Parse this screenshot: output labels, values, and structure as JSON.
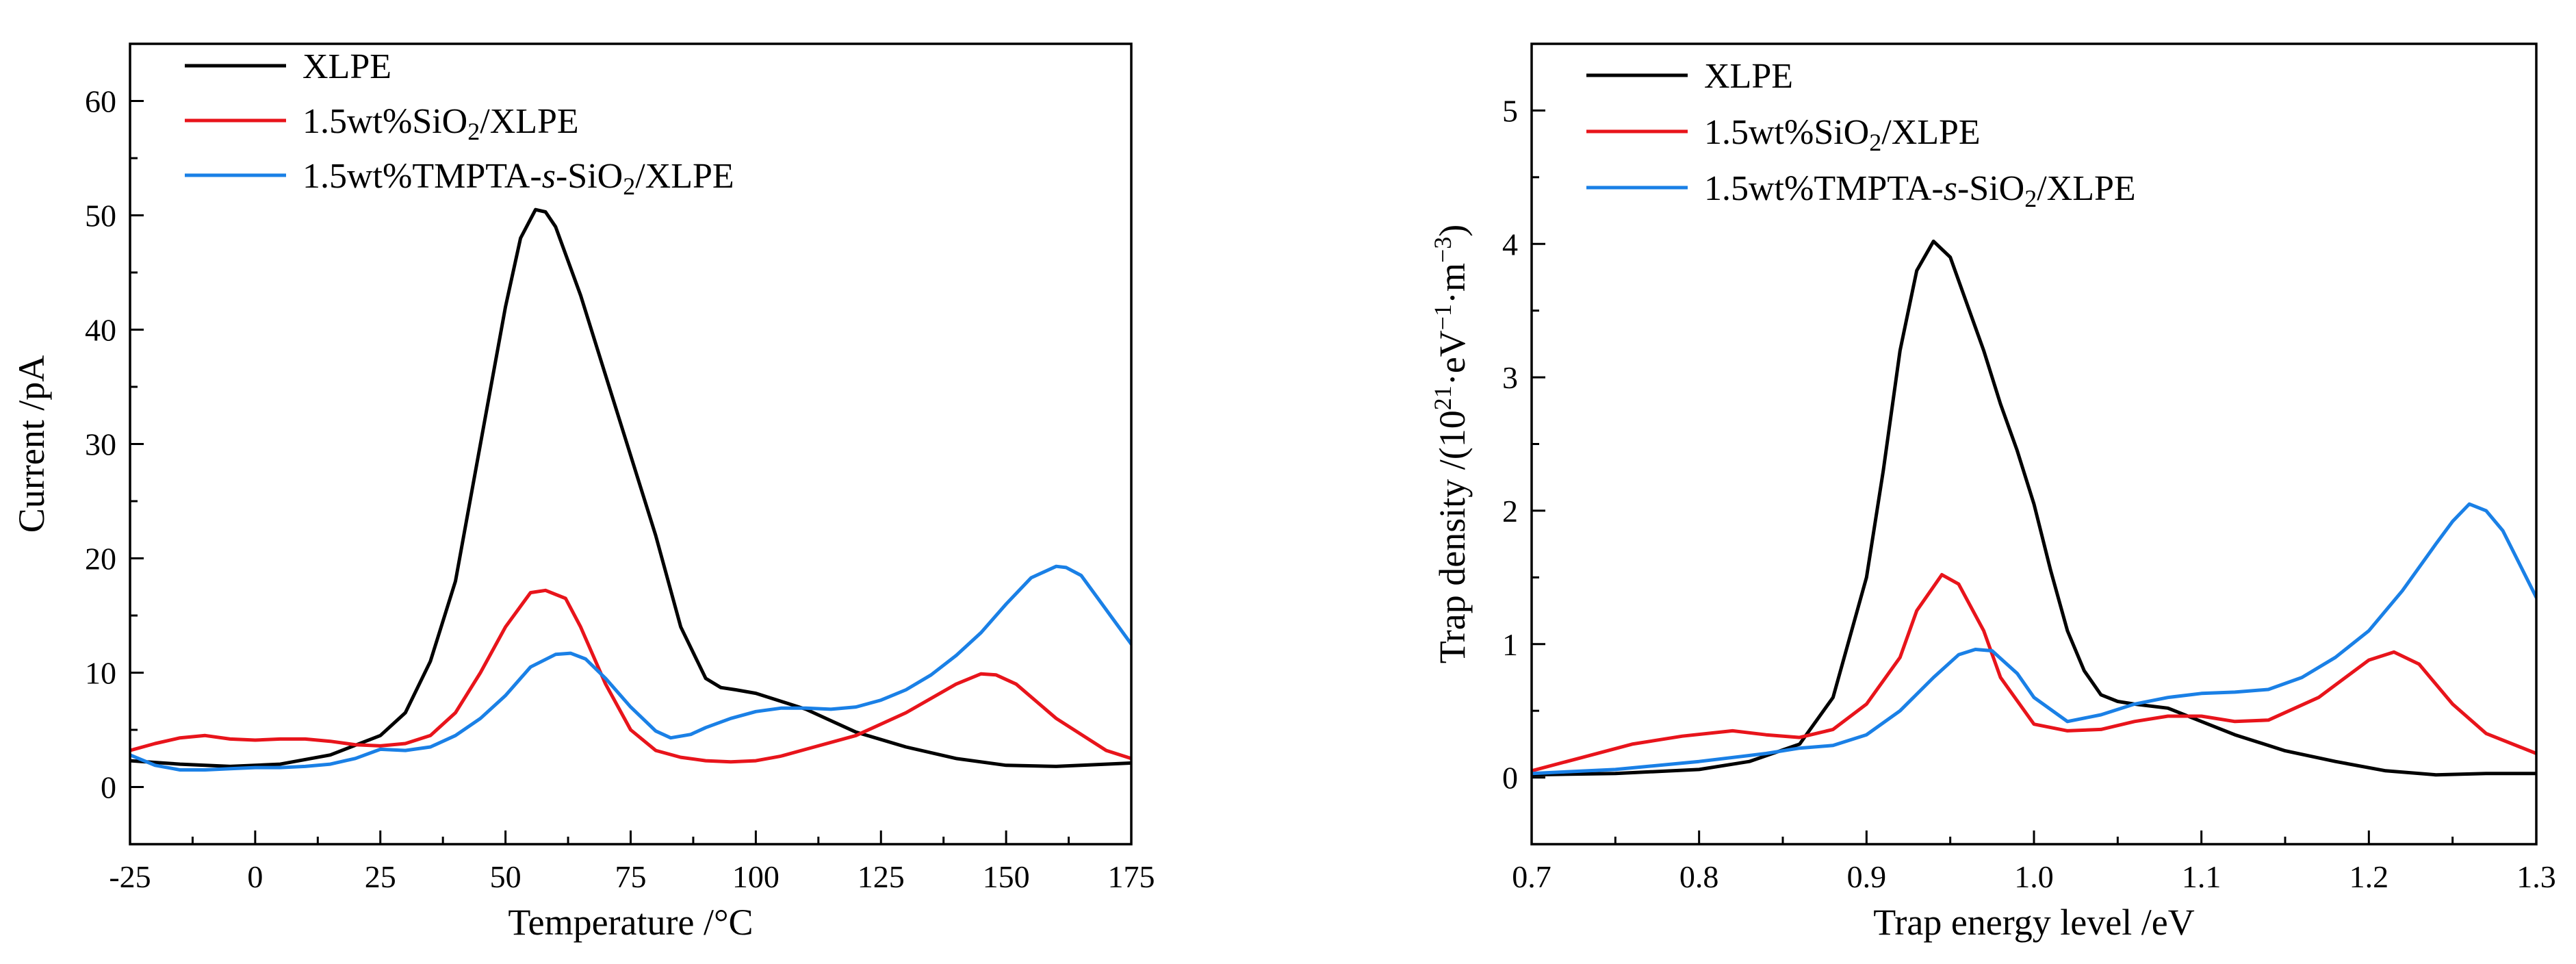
{
  "chart_data": [
    {
      "type": "line",
      "xlabel": "Temperature /°C",
      "ylabel": "Current /pA",
      "xlim": [
        -25,
        175
      ],
      "ylim": [
        -5,
        65
      ],
      "xticks": [
        -25,
        0,
        25,
        50,
        75,
        100,
        125,
        150,
        175
      ],
      "yticks": [
        0,
        10,
        20,
        30,
        40,
        50,
        60
      ],
      "legend_position": "top-left",
      "series": [
        {
          "name": "XLPE",
          "legend_parts": [
            "XLPE"
          ],
          "color": "#000000",
          "x": [
            -25,
            -15,
            -5,
            5,
            15,
            25,
            30,
            35,
            40,
            45,
            50,
            53,
            56,
            58,
            60,
            65,
            70,
            75,
            80,
            85,
            90,
            93,
            96,
            100,
            105,
            110,
            115,
            120,
            130,
            140,
            150,
            160,
            170,
            175
          ],
          "y": [
            2.3,
            2.0,
            1.8,
            2.0,
            2.8,
            4.5,
            6.5,
            11,
            18,
            30,
            42,
            48,
            50.5,
            50.3,
            49,
            43,
            36,
            29,
            22,
            14,
            9.5,
            8.7,
            8.5,
            8.2,
            7.5,
            6.8,
            5.8,
            4.8,
            3.5,
            2.5,
            1.9,
            1.8,
            2.0,
            2.1
          ]
        },
        {
          "name": "1.5wt%SiO2/XLPE",
          "legend_parts": [
            "1.5wt%SiO",
            "2",
            "/XLPE"
          ],
          "color": "#e8141b",
          "x": [
            -25,
            -20,
            -15,
            -10,
            -5,
            0,
            5,
            10,
            15,
            20,
            25,
            30,
            35,
            40,
            45,
            50,
            55,
            58,
            62,
            65,
            70,
            75,
            80,
            85,
            90,
            95,
            100,
            105,
            110,
            120,
            130,
            140,
            145,
            148,
            152,
            160,
            170,
            175
          ],
          "y": [
            3.2,
            3.8,
            4.3,
            4.5,
            4.2,
            4.1,
            4.2,
            4.2,
            4.0,
            3.7,
            3.6,
            3.8,
            4.5,
            6.5,
            10,
            14,
            17,
            17.2,
            16.5,
            14,
            9,
            5,
            3.2,
            2.6,
            2.3,
            2.2,
            2.3,
            2.7,
            3.3,
            4.5,
            6.5,
            9.0,
            9.9,
            9.8,
            9.0,
            6,
            3.2,
            2.5
          ]
        },
        {
          "name": "1.5wt%TMPTA-s-SiO2/XLPE",
          "legend_parts": [
            "1.5wt%TMPTA-",
            "s",
            "-SiO",
            "2",
            "/XLPE"
          ],
          "color": "#1a80e6",
          "x": [
            -25,
            -20,
            -15,
            -10,
            -5,
            0,
            5,
            10,
            15,
            20,
            25,
            30,
            35,
            40,
            45,
            50,
            55,
            60,
            63,
            66,
            70,
            75,
            80,
            83,
            87,
            90,
            95,
            100,
            105,
            110,
            115,
            120,
            125,
            130,
            135,
            140,
            145,
            150,
            155,
            160,
            162,
            165,
            170,
            175
          ],
          "y": [
            2.8,
            1.9,
            1.5,
            1.5,
            1.6,
            1.7,
            1.7,
            1.8,
            2.0,
            2.5,
            3.3,
            3.2,
            3.5,
            4.5,
            6,
            8,
            10.5,
            11.6,
            11.7,
            11.2,
            9.5,
            7,
            4.9,
            4.3,
            4.6,
            5.2,
            6,
            6.6,
            6.9,
            6.9,
            6.8,
            7.0,
            7.6,
            8.5,
            9.8,
            11.5,
            13.5,
            16,
            18.3,
            19.3,
            19.2,
            18.5,
            15.5,
            12.5
          ]
        }
      ]
    },
    {
      "type": "line",
      "xlabel": "Trap energy level /eV",
      "ylabel_parts": [
        "Trap density /(10",
        "21",
        "·eV",
        "−1",
        "·m",
        "−3",
        ")"
      ],
      "xlim": [
        0.7,
        1.3
      ],
      "ylim": [
        -0.5,
        5.5
      ],
      "xticks": [
        "0.7",
        "0.8",
        "0.9",
        "1.0",
        "1.1",
        "1.2",
        "1.3"
      ],
      "yticks": [
        0,
        1,
        2,
        3,
        4,
        5
      ],
      "legend_position": "top-left",
      "series": [
        {
          "name": "XLPE",
          "legend_parts": [
            "XLPE"
          ],
          "color": "#000000",
          "x": [
            0.7,
            0.75,
            0.8,
            0.83,
            0.86,
            0.88,
            0.9,
            0.91,
            0.92,
            0.93,
            0.94,
            0.95,
            0.96,
            0.97,
            0.98,
            0.99,
            1.0,
            1.01,
            1.02,
            1.03,
            1.04,
            1.05,
            1.06,
            1.08,
            1.1,
            1.12,
            1.15,
            1.18,
            1.21,
            1.24,
            1.27,
            1.3
          ],
          "y": [
            0.02,
            0.03,
            0.06,
            0.12,
            0.25,
            0.6,
            1.5,
            2.3,
            3.2,
            3.8,
            4.02,
            3.9,
            3.55,
            3.2,
            2.8,
            2.45,
            2.05,
            1.55,
            1.1,
            0.8,
            0.62,
            0.57,
            0.55,
            0.52,
            0.42,
            0.32,
            0.2,
            0.12,
            0.05,
            0.02,
            0.03,
            0.03
          ]
        },
        {
          "name": "1.5wt%SiO2/XLPE",
          "legend_parts": [
            "1.5wt%SiO",
            "2",
            "/XLPE"
          ],
          "color": "#e8141b",
          "x": [
            0.7,
            0.73,
            0.76,
            0.79,
            0.82,
            0.84,
            0.86,
            0.88,
            0.9,
            0.92,
            0.93,
            0.945,
            0.955,
            0.97,
            0.98,
            1.0,
            1.02,
            1.04,
            1.06,
            1.08,
            1.1,
            1.12,
            1.14,
            1.17,
            1.2,
            1.215,
            1.23,
            1.25,
            1.27,
            1.3
          ],
          "y": [
            0.05,
            0.15,
            0.25,
            0.31,
            0.35,
            0.32,
            0.3,
            0.36,
            0.55,
            0.9,
            1.25,
            1.52,
            1.45,
            1.1,
            0.75,
            0.4,
            0.35,
            0.36,
            0.42,
            0.46,
            0.46,
            0.42,
            0.43,
            0.6,
            0.88,
            0.94,
            0.85,
            0.55,
            0.33,
            0.18
          ]
        },
        {
          "name": "1.5wt%TMPTA-s-SiO2/XLPE",
          "legend_parts": [
            "1.5wt%TMPTA-",
            "s",
            "-SiO",
            "2",
            "/XLPE"
          ],
          "color": "#1a80e6",
          "x": [
            0.7,
            0.75,
            0.8,
            0.84,
            0.86,
            0.88,
            0.9,
            0.92,
            0.94,
            0.955,
            0.965,
            0.975,
            0.99,
            1.0,
            1.02,
            1.04,
            1.06,
            1.08,
            1.1,
            1.12,
            1.14,
            1.16,
            1.18,
            1.2,
            1.22,
            1.24,
            1.25,
            1.26,
            1.27,
            1.28,
            1.3
          ],
          "y": [
            0.03,
            0.06,
            0.12,
            0.18,
            0.22,
            0.24,
            0.32,
            0.5,
            0.75,
            0.92,
            0.96,
            0.95,
            0.78,
            0.6,
            0.42,
            0.47,
            0.55,
            0.6,
            0.63,
            0.64,
            0.66,
            0.75,
            0.9,
            1.1,
            1.4,
            1.75,
            1.92,
            2.05,
            2.0,
            1.85,
            1.35
          ]
        }
      ]
    }
  ]
}
